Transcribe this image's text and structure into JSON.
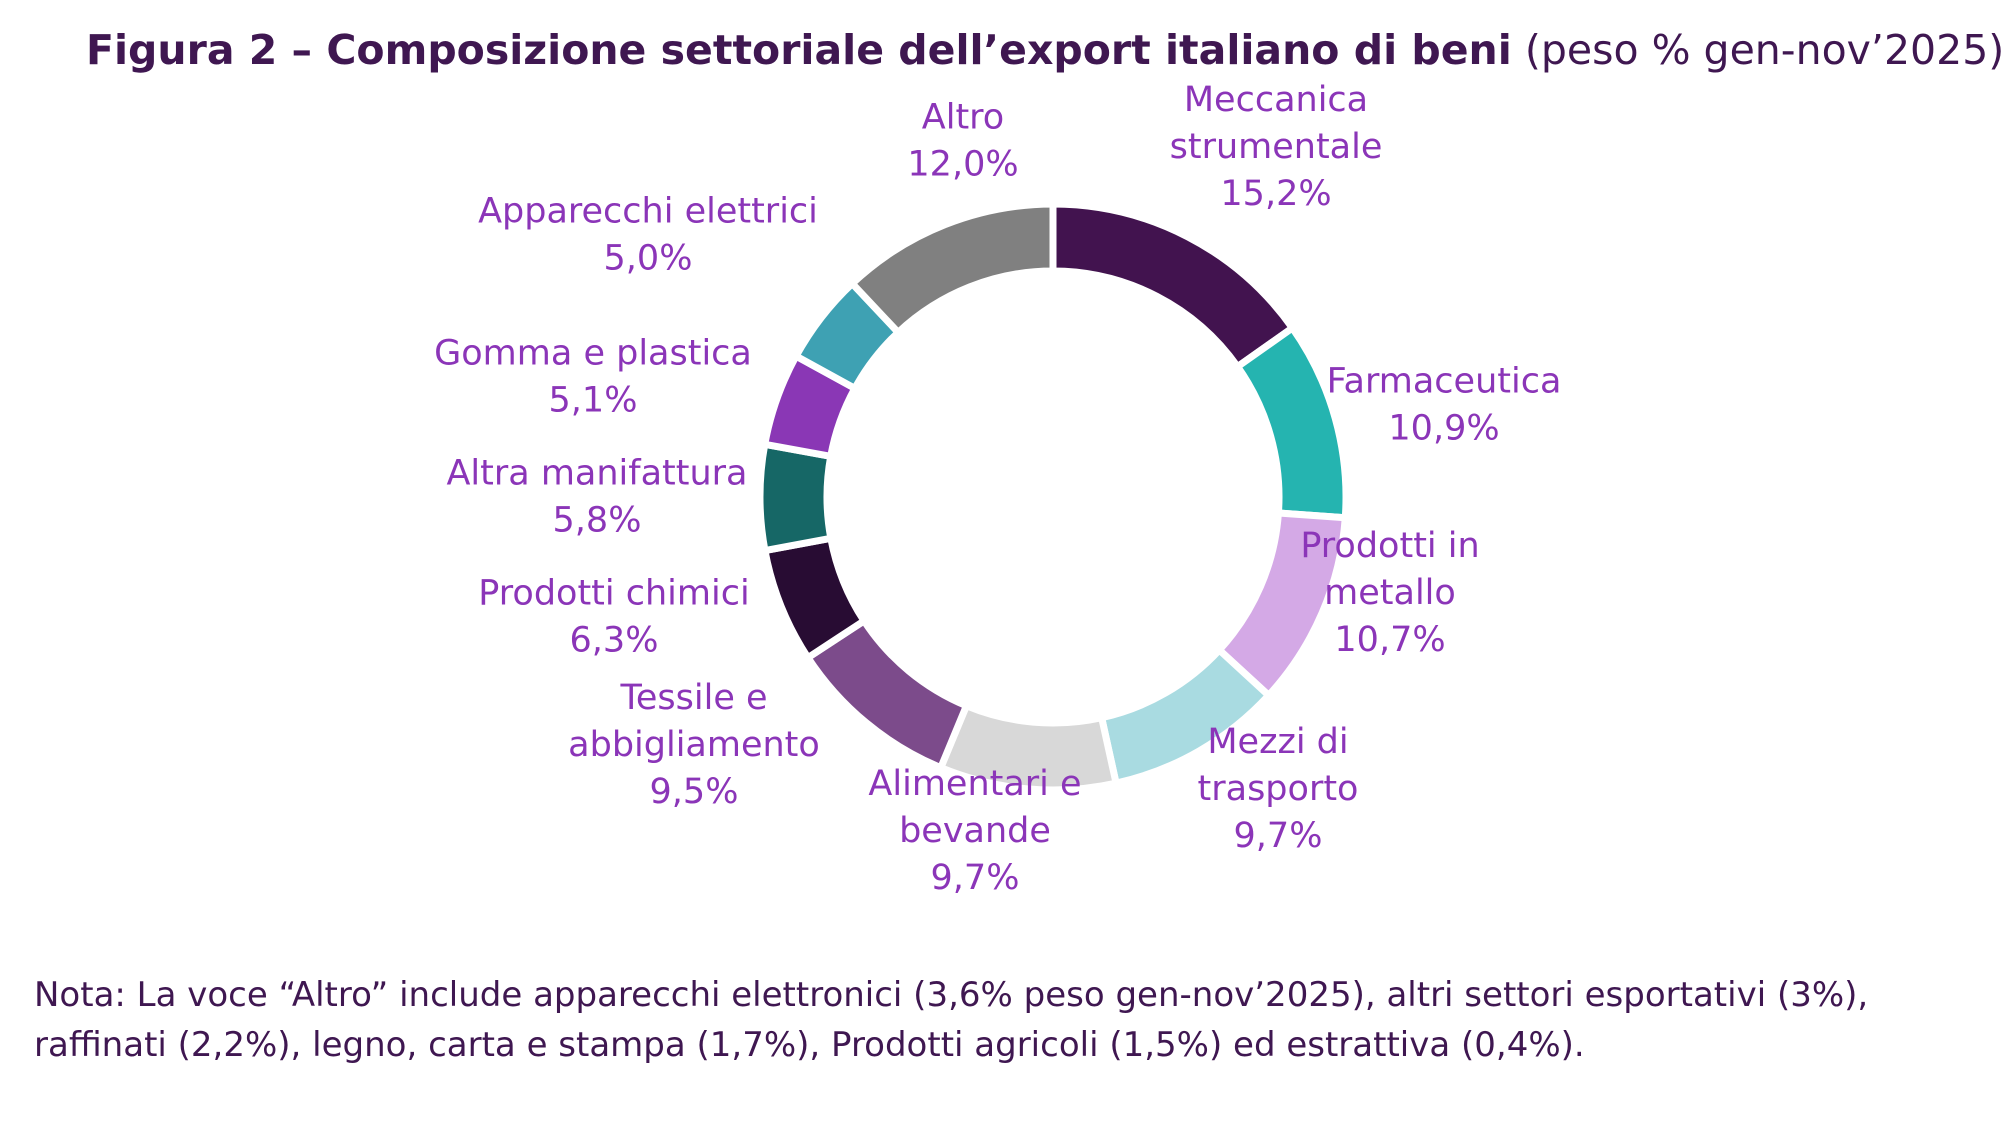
{
  "title": {
    "bold": "Figura 2 – Composizione settoriale dell’export italiano di beni",
    "light": "(peso % gen-nov’2025)"
  },
  "chart_data": {
    "type": "pie",
    "donut": true,
    "unit": "%",
    "labels_position": "outside",
    "slices": [
      {
        "name": "Meccanica strumentale",
        "label_lines": [
          "Meccanica",
          "strumentale",
          "15,2%"
        ],
        "value": 15.2,
        "color": "#42134f"
      },
      {
        "name": "Farmaceutica",
        "label_lines": [
          "Farmaceutica",
          "10,9%"
        ],
        "value": 10.9,
        "color": "#25b4b0"
      },
      {
        "name": "Prodotti in metallo",
        "label_lines": [
          "Prodotti in",
          "metallo",
          "10,7%"
        ],
        "value": 10.7,
        "color": "#d4a9e6"
      },
      {
        "name": "Mezzi di trasporto",
        "label_lines": [
          "Mezzi di",
          "trasporto",
          "9,7%"
        ],
        "value": 9.7,
        "color": "#a9dbe1"
      },
      {
        "name": "Alimentari e bevande",
        "label_lines": [
          "Alimentari e",
          "bevande",
          "9,7%"
        ],
        "value": 9.7,
        "color": "#d8d8d8"
      },
      {
        "name": "Tessile e abbigliamento",
        "label_lines": [
          "Tessile e",
          "abbigliamento",
          "9,5%"
        ],
        "value": 9.5,
        "color": "#7c4b8b"
      },
      {
        "name": "Prodotti chimici",
        "label_lines": [
          "Prodotti chimici",
          "6,3%"
        ],
        "value": 6.3,
        "color": "#280c33"
      },
      {
        "name": "Altra manifattura",
        "label_lines": [
          "Altra manifattura",
          "5,8%"
        ],
        "value": 5.8,
        "color": "#166766"
      },
      {
        "name": "Gomma e plastica",
        "label_lines": [
          "Gomma e plastica",
          "5,1%"
        ],
        "value": 5.1,
        "color": "#8a37b5"
      },
      {
        "name": "Apparecchi elettrici",
        "label_lines": [
          "Apparecchi elettrici",
          "5,0%"
        ],
        "value": 5.0,
        "color": "#3ea1b3"
      },
      {
        "name": "Altro",
        "label_lines": [
          "Altro",
          "12,0%"
        ],
        "value": 12.0,
        "color": "#808080"
      }
    ]
  },
  "note": "Nota: La voce “Altro” include apparecchi elettronici (3,6% peso gen-nov’2025), altri settori esportativi (3%), raffinati (2,2%), legno, carta e stampa (1,7%), Prodotti agricoli (1,5%) ed estrattiva (0,4%)."
}
